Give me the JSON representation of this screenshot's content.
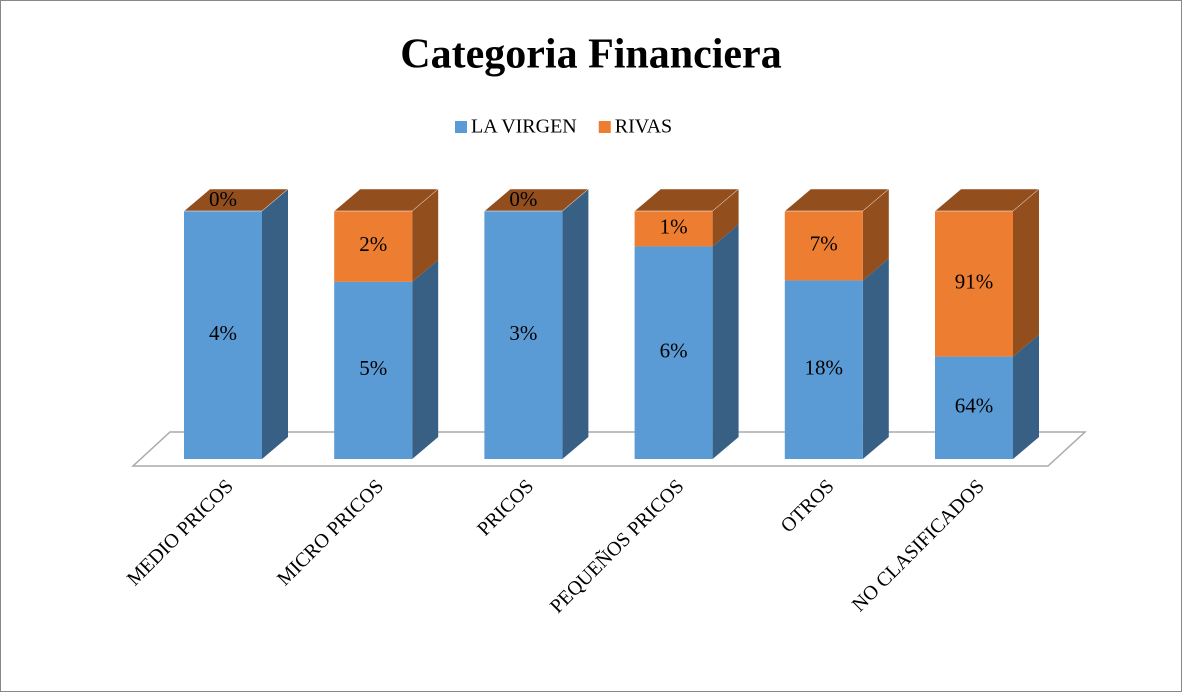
{
  "chart_data": {
    "type": "bar",
    "stacked": "percent",
    "title": "Categoria Financiera",
    "categories": [
      "MEDIO PRICOS",
      "MICRO PRICOS",
      "PRICOS",
      "PEQUEÑOS PRICOS",
      "OTROS",
      "NO CLASIFICADOS"
    ],
    "series": [
      {
        "name": "LA VIRGEN",
        "color": "#5b9bd5",
        "values": [
          4,
          5,
          3,
          6,
          18,
          64
        ],
        "value_labels": [
          "4%",
          "5%",
          "3%",
          "6%",
          "18%",
          "64%"
        ]
      },
      {
        "name": "RIVAS",
        "color": "#ed7d31",
        "values": [
          0,
          2,
          0,
          1,
          7,
          91
        ],
        "value_labels": [
          "0%",
          "2%",
          "0%",
          "1%",
          "7%",
          "91%"
        ]
      }
    ],
    "legend": "top"
  }
}
